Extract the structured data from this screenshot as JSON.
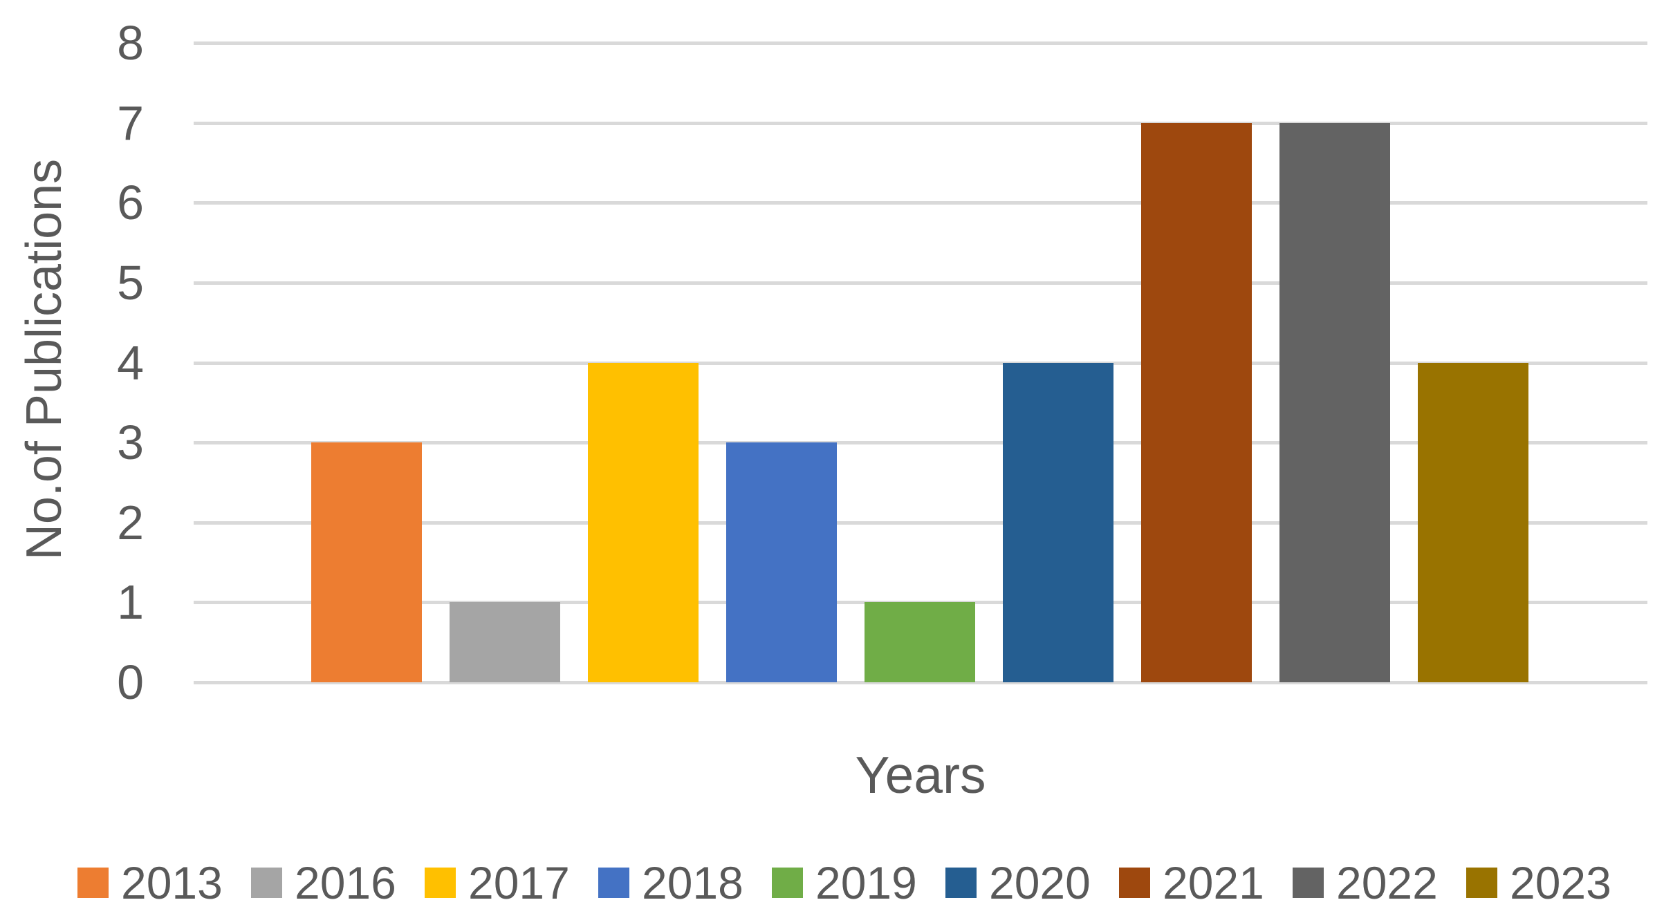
{
  "chart_data": {
    "type": "bar",
    "title": "",
    "xlabel": "Years",
    "ylabel": "No.of Publications",
    "ylim": [
      0,
      8
    ],
    "yticks": [
      0,
      1,
      2,
      3,
      4,
      5,
      6,
      7,
      8
    ],
    "grid": true,
    "legend_position": "bottom",
    "text_color": "#595959",
    "gridline_color": "#d9d9d9",
    "categories": [
      "2013",
      "2016",
      "2017",
      "2018",
      "2019",
      "2020",
      "2021",
      "2022",
      "2023"
    ],
    "series": [
      {
        "name": "2013",
        "value": 3,
        "color": "#ED7D31"
      },
      {
        "name": "2016",
        "value": 1,
        "color": "#A5A5A5"
      },
      {
        "name": "2017",
        "value": 4,
        "color": "#FFC000"
      },
      {
        "name": "2018",
        "value": 3,
        "color": "#4472C4"
      },
      {
        "name": "2019",
        "value": 1,
        "color": "#70AD47"
      },
      {
        "name": "2020",
        "value": 4,
        "color": "#255E91"
      },
      {
        "name": "2021",
        "value": 7,
        "color": "#9E480E"
      },
      {
        "name": "2022",
        "value": 7,
        "color": "#636363"
      },
      {
        "name": "2023",
        "value": 4,
        "color": "#997300"
      }
    ]
  }
}
